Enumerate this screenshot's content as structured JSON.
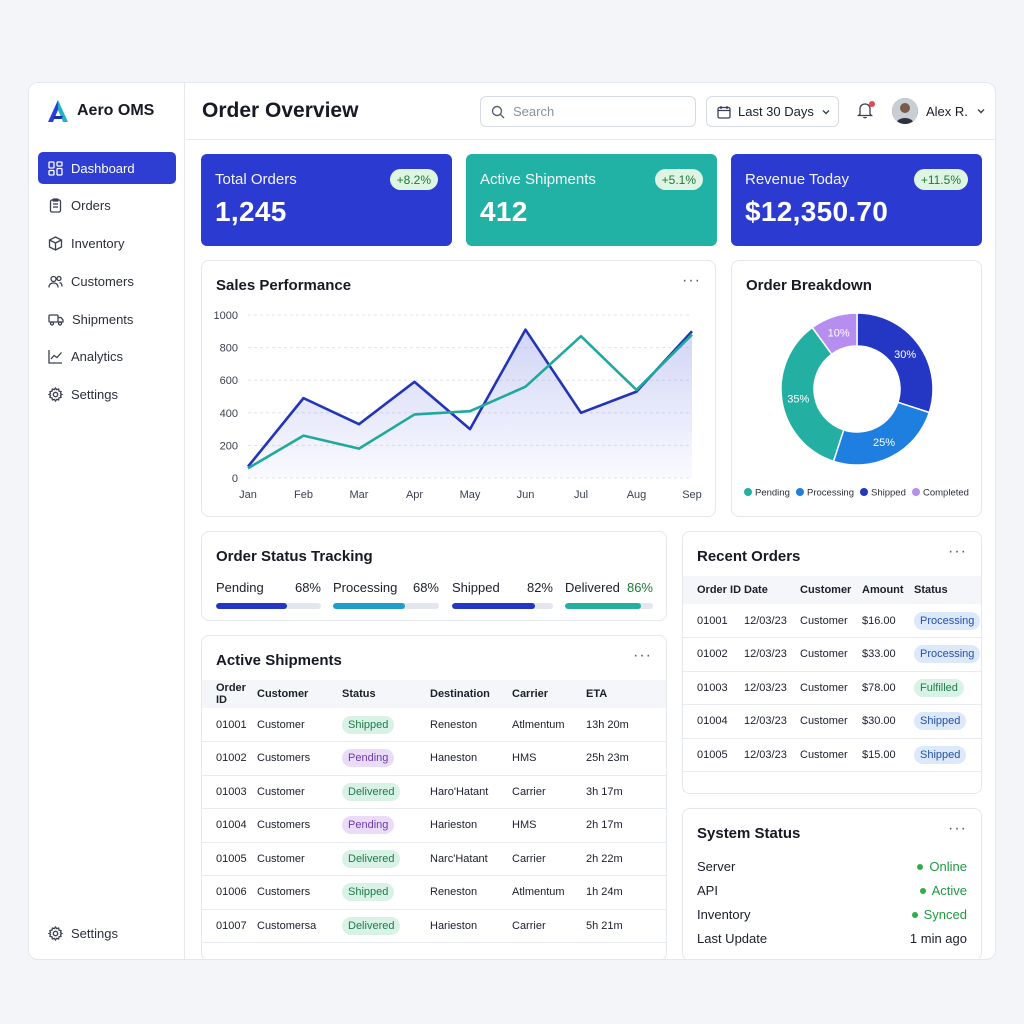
{
  "brand": {
    "name": "Aero OMS"
  },
  "sidebar": {
    "items": [
      {
        "label": "Dashboard",
        "icon": "dashboard-icon",
        "active": true
      },
      {
        "label": "Orders",
        "icon": "clipboard-icon"
      },
      {
        "label": "Inventory",
        "icon": "box-icon"
      },
      {
        "label": "Customers",
        "icon": "users-icon"
      },
      {
        "label": "Shipments",
        "icon": "truck-icon"
      },
      {
        "label": "Analytics",
        "icon": "line-chart-icon"
      },
      {
        "label": "Settings",
        "icon": "gear-icon"
      }
    ],
    "bottom": {
      "label": "Settings",
      "icon": "gear-icon"
    }
  },
  "header": {
    "title": "Order Overview",
    "search_placeholder": "Search",
    "date_range": "Last 30 Days",
    "user_name": "Alex R."
  },
  "kpis": [
    {
      "label": "Total Orders",
      "value": "1,245",
      "delta": "+8.2%",
      "color": "#2b3bd1"
    },
    {
      "label": "Active Shipments",
      "value": "412",
      "delta": "+5.1%",
      "color": "#21b2a5"
    },
    {
      "label": "Revenue Today",
      "value": "$12,350.70",
      "delta": "+11.5%",
      "color": "#2b3bd1"
    }
  ],
  "sales": {
    "title": "Sales Performance",
    "chart_data": {
      "type": "line",
      "categories": [
        "Jan",
        "Feb",
        "Mar",
        "Apr",
        "May",
        "Jun",
        "Jul",
        "Aug",
        "Sep"
      ],
      "ylim": [
        0,
        1000
      ],
      "yticks": [
        0,
        200,
        400,
        600,
        800,
        1000
      ],
      "grid": true,
      "series": [
        {
          "color": "#2234b8",
          "values": [
            70,
            490,
            330,
            590,
            300,
            910,
            400,
            530,
            900
          ],
          "fill": true
        },
        {
          "color": "#1fa99c",
          "values": [
            60,
            260,
            180,
            390,
            410,
            560,
            870,
            540,
            880
          ]
        }
      ]
    }
  },
  "breakdown": {
    "title": "Order Breakdown",
    "chart_data": {
      "type": "pie",
      "slices": [
        {
          "label": "Shipped",
          "value": 30,
          "text": "30%",
          "color": "#2436c4"
        },
        {
          "label": "Processing",
          "value": 25,
          "text": "25%",
          "color": "#1f7fe0"
        },
        {
          "label": "Pending",
          "value": 35,
          "text": "35%",
          "color": "#23b0a3"
        },
        {
          "label": "Completed",
          "value": 10,
          "text": "10%",
          "color": "#b58ef0"
        }
      ],
      "legend": [
        {
          "label": "Pending",
          "color": "#23b0a3"
        },
        {
          "label": "Processing",
          "color": "#1f7fe0"
        },
        {
          "label": "Shipped",
          "color": "#2436c4"
        },
        {
          "label": "Completed",
          "color": "#b58ef0"
        }
      ]
    }
  },
  "tracking": {
    "title": "Order Status Tracking",
    "items": [
      {
        "label": "Pending",
        "pct": "68%",
        "fraction": 0.68,
        "color": "#2436c4"
      },
      {
        "label": "Processing",
        "pct": "68%",
        "fraction": 0.68,
        "color": "#1f9fc7"
      },
      {
        "label": "Shipped",
        "pct": "82%",
        "fraction": 0.82,
        "color": "#2436c4"
      },
      {
        "label": "Delivered",
        "pct": "86%",
        "fraction": 0.86,
        "color": "#23b0a3"
      }
    ]
  },
  "shipments": {
    "title": "Active Shipments",
    "columns": [
      "Order ID",
      "Customer",
      "Status",
      "Destination",
      "Carrier",
      "ETA"
    ],
    "rows": [
      {
        "id": "01001",
        "customer": "Customer",
        "status": "Shipped",
        "status_type": "shipped",
        "destination": "Reneston",
        "carrier": "Atlmentum",
        "eta": "13h 20m"
      },
      {
        "id": "01002",
        "customer": "Customers",
        "status": "Pending",
        "status_type": "pending",
        "destination": "Haneston",
        "carrier": "HMS",
        "eta": "25h 23m"
      },
      {
        "id": "01003",
        "customer": "Customer",
        "status": "Delivered",
        "status_type": "delivered",
        "destination": "Haro'Hatant",
        "carrier": "Carrier",
        "eta": "3h 17m"
      },
      {
        "id": "01004",
        "customer": "Customers",
        "status": "Pending",
        "status_type": "pending",
        "destination": "Harieston",
        "carrier": "HMS",
        "eta": "2h 17m"
      },
      {
        "id": "01005",
        "customer": "Customer",
        "status": "Delivered",
        "status_type": "delivered",
        "destination": "Narc'Hatant",
        "carrier": "Carrier",
        "eta": "2h 22m"
      },
      {
        "id": "01006",
        "customer": "Customers",
        "status": "Shipped",
        "status_type": "shipped",
        "destination": "Reneston",
        "carrier": "Atlmentum",
        "eta": "1h 24m"
      },
      {
        "id": "01007",
        "customer": "Customersa",
        "status": "Delivered",
        "status_type": "delivered",
        "destination": "Harieston",
        "carrier": "Carrier",
        "eta": "5h 21m"
      }
    ]
  },
  "recent": {
    "title": "Recent Orders",
    "columns": [
      "Order ID",
      "Date",
      "Customer",
      "Amount",
      "Status"
    ],
    "rows": [
      {
        "id": "01001",
        "date": "12/03/23",
        "customer": "Customer",
        "amount": "$16.00",
        "status": "Processing",
        "status_type": "processing"
      },
      {
        "id": "01002",
        "date": "12/03/23",
        "customer": "Customer",
        "amount": "$33.00",
        "status": "Processing",
        "status_type": "processing"
      },
      {
        "id": "01003",
        "date": "12/03/23",
        "customer": "Customer",
        "amount": "$78.00",
        "status": "Fulfilled",
        "status_type": "fulfilled"
      },
      {
        "id": "01004",
        "date": "12/03/23",
        "customer": "Customer",
        "amount": "$30.00",
        "status": "Shipped",
        "status_type": "shipped2"
      },
      {
        "id": "01005",
        "date": "12/03/23",
        "customer": "Customer",
        "amount": "$15.00",
        "status": "Shipped",
        "status_type": "shipped2"
      }
    ]
  },
  "system": {
    "title": "System Status",
    "rows": [
      {
        "label": "Server",
        "value": "Online",
        "dot": true
      },
      {
        "label": "API",
        "value": "Active",
        "dot": true
      },
      {
        "label": "Inventory",
        "value": "Synced",
        "dot": true
      },
      {
        "label": "Last Update",
        "value": "1 min ago",
        "dot": false
      }
    ]
  }
}
